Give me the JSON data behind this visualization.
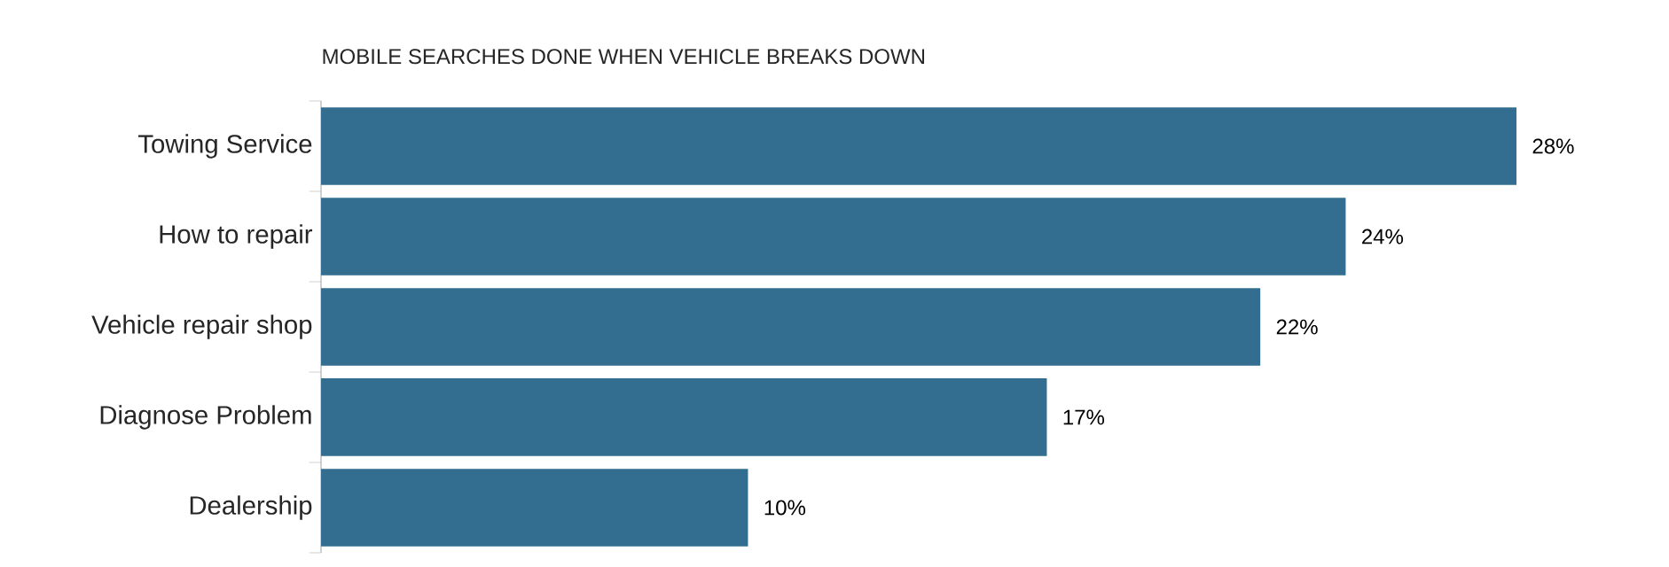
{
  "chart_data": {
    "type": "bar",
    "orientation": "horizontal",
    "title": "MOBILE SEARCHES DONE WHEN VEHICLE BREAKS DOWN",
    "categories": [
      "Towing Service",
      "How to repair",
      "Vehicle repair shop",
      "Diagnose Problem",
      "Dealership"
    ],
    "values": [
      28,
      24,
      22,
      17,
      10
    ],
    "value_labels": [
      "28%",
      "24%",
      "22%",
      "17%",
      "10%"
    ],
    "color": "#336e91",
    "tick_labels": "y"
  }
}
